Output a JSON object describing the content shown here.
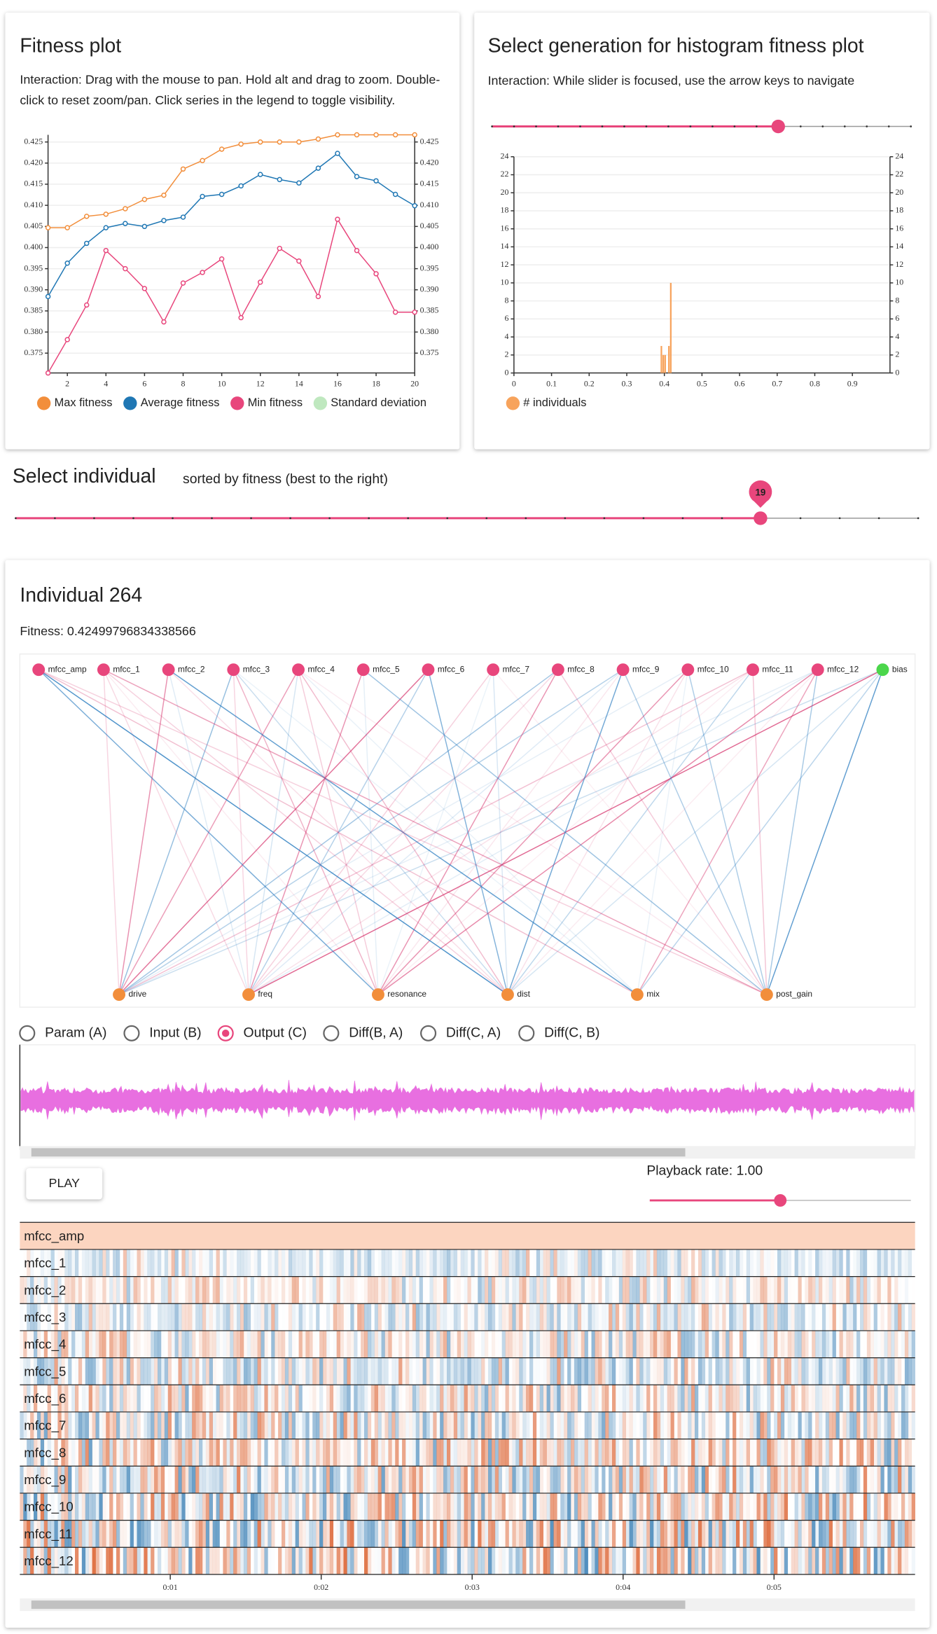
{
  "chart_data": [
    {
      "type": "line",
      "title": "Fitness plot",
      "subtitle": "Interaction: Drag with the mouse to pan. Hold alt and drag to zoom. Double-click to reset zoom/pan. Click series in the legend to toggle visibility.",
      "x": [
        1,
        2,
        3,
        4,
        5,
        6,
        7,
        8,
        9,
        10,
        11,
        12,
        13,
        14,
        15,
        16,
        17,
        18,
        19,
        20
      ],
      "xlim": [
        1,
        20
      ],
      "xticks": [
        2,
        4,
        6,
        8,
        10,
        12,
        14,
        16,
        18,
        20
      ],
      "ylim": [
        0.3703,
        0.4267
      ],
      "yticks": [
        0.375,
        {
          "value": 0.38,
          "label": "0.380"
        },
        0.385,
        {
          "value": 0.39,
          "label": "0.390"
        },
        0.395,
        {
          "value": 0.4,
          "label": "0.400"
        },
        0.405,
        {
          "value": 0.41,
          "label": "0.410"
        },
        0.415,
        {
          "value": 0.42,
          "label": "0.420"
        },
        0.425
      ],
      "grid": true,
      "legend": "bottom",
      "series": [
        {
          "name": "Max fitness",
          "color": "#f28e3b",
          "values": [
            0.4047,
            0.4047,
            0.4074,
            0.4079,
            0.4092,
            0.4114,
            0.4124,
            0.4186,
            0.4206,
            0.4233,
            0.4245,
            0.425,
            0.425,
            0.425,
            0.4257,
            0.4267,
            0.4267,
            0.4267,
            0.4267,
            0.4267
          ]
        },
        {
          "name": "Average fitness",
          "color": "#1f77b4",
          "values": [
            0.3884,
            0.3963,
            0.401,
            0.4047,
            0.4057,
            0.405,
            0.4064,
            0.4072,
            0.4121,
            0.4126,
            0.4146,
            0.4173,
            0.4161,
            0.4153,
            0.4188,
            0.4223,
            0.4168,
            0.4158,
            0.4126,
            0.4099
          ]
        },
        {
          "name": "Min fitness",
          "color": "#e8467c",
          "values": [
            0.3703,
            0.3782,
            0.3864,
            0.3993,
            0.395,
            0.3903,
            0.3824,
            0.3916,
            0.3941,
            0.3973,
            0.3834,
            0.3918,
            0.3998,
            0.3968,
            0.3884,
            0.4067,
            0.3993,
            0.3938,
            0.3847,
            0.3847
          ]
        },
        {
          "name": "Standard deviation",
          "color": "#bfe8bf",
          "visible": false
        }
      ]
    },
    {
      "type": "histogram",
      "title": "Select generation for histogram fitness plot",
      "subtitle": "Interaction: While slider is focused, use the arrow keys to navigate",
      "bins": [
        0.39,
        0.395,
        0.4,
        0.405,
        0.41,
        0.415,
        0.42
      ],
      "xlim": [
        0,
        1
      ],
      "xticks": [
        0,
        0.1,
        0.2,
        0.3,
        0.4,
        0.5,
        0.6,
        0.7,
        0.8,
        0.9
      ],
      "ylim": [
        0,
        24
      ],
      "yticks": [
        0,
        2,
        4,
        6,
        8,
        10,
        12,
        14,
        16,
        18,
        20,
        22,
        24
      ],
      "grid": true,
      "legend": "bottom",
      "series": [
        {
          "name": "# individuals",
          "color": "#f7a35c",
          "values": [
            3,
            2,
            2,
            0,
            3,
            10
          ]
        }
      ]
    }
  ],
  "individual_selector": {
    "title": "Select individual",
    "subtitle": "sorted by fitness (best to the right)",
    "value": 19
  },
  "individual": {
    "title": "Individual 264",
    "fitness": "Fitness: 0.42499796834338566",
    "network": {
      "inputs": [
        "mfcc_amp",
        "mfcc_1",
        "mfcc_2",
        "mfcc_3",
        "mfcc_4",
        "mfcc_5",
        "mfcc_6",
        "mfcc_7",
        "mfcc_8",
        "mfcc_9",
        "mfcc_10",
        "mfcc_11",
        "mfcc_12",
        "bias"
      ],
      "outputs": [
        "drive",
        "freq",
        "resonance",
        "dist",
        "mix",
        "post_gain"
      ]
    },
    "view_options": [
      "Param (A)",
      "Input (B)",
      "Output (C)",
      "Diff(B, A)",
      "Diff(C, A)",
      "Diff(C, B)"
    ],
    "selected_view": 2,
    "play_button": "PLAY",
    "playback_rate": "Playback rate: 1.00",
    "time_ticks": [
      "0:01",
      "0:02",
      "0:03",
      "0:04",
      "0:05"
    ]
  }
}
